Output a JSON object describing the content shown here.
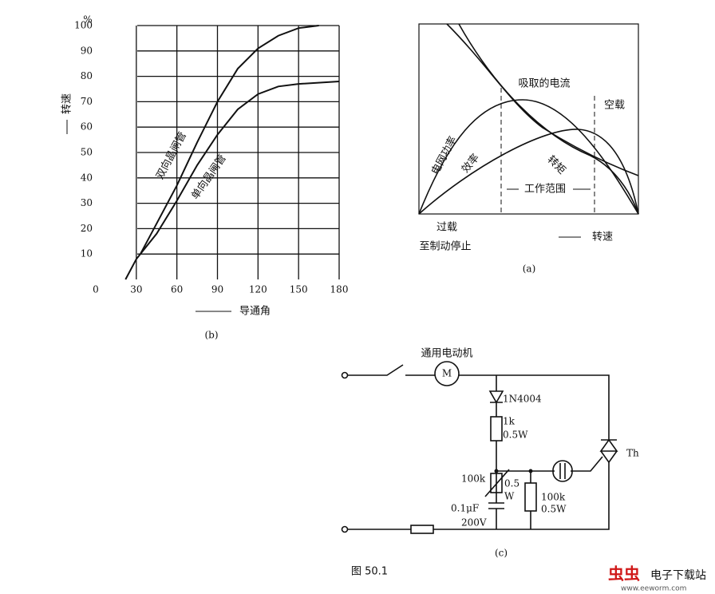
{
  "chart_data": {
    "type": "line",
    "xlabel": "导通角",
    "ylabel": "转速",
    "y_unit": "%",
    "caption": "(b)",
    "xlim": [
      0,
      180
    ],
    "ylim": [
      0,
      100
    ],
    "xticks": [
      0,
      30,
      60,
      90,
      120,
      150,
      180
    ],
    "yticks": [
      10,
      20,
      30,
      40,
      50,
      60,
      70,
      80,
      90,
      100
    ],
    "grid": true,
    "series": [
      {
        "name": "双向晶闸管",
        "color": "#111111",
        "x": [
          33,
          45,
          60,
          75,
          90,
          105,
          120,
          135,
          150,
          165
        ],
        "values": [
          10,
          22,
          37,
          54,
          70,
          83,
          91,
          96,
          99,
          100
        ]
      },
      {
        "name": "单向晶闸管",
        "color": "#111111",
        "x": [
          22,
          30,
          45,
          60,
          75,
          90,
          105,
          120,
          135,
          150,
          180
        ],
        "values": [
          0,
          8,
          18,
          31,
          45,
          57,
          67,
          73,
          76,
          77,
          78
        ]
      }
    ]
  },
  "panel_a": {
    "current": "吸取的电流",
    "no_load": "空载",
    "grid_power": "电网功率",
    "efficiency": "效率",
    "torque": "转矩",
    "working_range": "工作范围",
    "overload": "过载",
    "to_stop": "至制动停止",
    "speed": "转速",
    "caption": "(a)"
  },
  "panel_c": {
    "motor_label": "通用电动机",
    "motor": "M",
    "diode": "1N4004",
    "r1_value": "1k",
    "r1_power": "0.5W",
    "triac": "Th",
    "pot_value": "100k",
    "pot_power_1": "0.5",
    "pot_power_2": "W",
    "r2_value": "100k",
    "r2_power": "0.5W",
    "cap_value": "0.1μF",
    "cap_voltage": "200V",
    "caption": "(c)"
  },
  "figure_caption": "图 50.1",
  "watermark": {
    "logo": "虫虫",
    "site": "电子下载站",
    "url": "www.eeworm.com"
  }
}
